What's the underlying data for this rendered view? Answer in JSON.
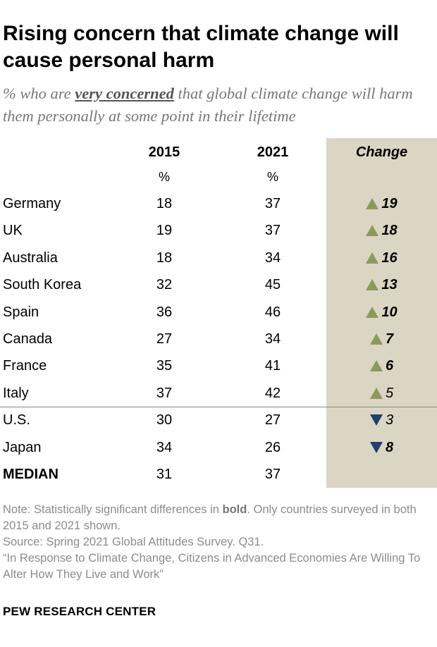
{
  "title": "Rising concern that climate change will cause personal harm",
  "subtitle": {
    "prefix": "% who are ",
    "emphasis": "very concerned",
    "suffix": " that global climate change will harm them personally at some point in their lifetime"
  },
  "columns": {
    "year1": "2015",
    "year2": "2021",
    "change": "Change",
    "unit": "%"
  },
  "colors": {
    "increase_arrow": "#8b9a5a",
    "decrease_arrow": "#1f3f6e",
    "change_background": "#dbd5c3",
    "subtitle": "#777777",
    "note": "#8c8c8c"
  },
  "chart_data": {
    "type": "table",
    "title": "Rising concern that climate change will cause personal harm",
    "columns": [
      "2015",
      "2021",
      "Change"
    ],
    "rows": [
      {
        "country": "Germany",
        "y2015": 18,
        "y2021": 37,
        "change": 19,
        "direction": "up",
        "significant": true
      },
      {
        "country": "UK",
        "y2015": 19,
        "y2021": 37,
        "change": 18,
        "direction": "up",
        "significant": true
      },
      {
        "country": "Australia",
        "y2015": 18,
        "y2021": 34,
        "change": 16,
        "direction": "up",
        "significant": true
      },
      {
        "country": "South Korea",
        "y2015": 32,
        "y2021": 45,
        "change": 13,
        "direction": "up",
        "significant": true
      },
      {
        "country": "Spain",
        "y2015": 36,
        "y2021": 46,
        "change": 10,
        "direction": "up",
        "significant": true
      },
      {
        "country": "Canada",
        "y2015": 27,
        "y2021": 34,
        "change": 7,
        "direction": "up",
        "significant": true
      },
      {
        "country": "France",
        "y2015": 35,
        "y2021": 41,
        "change": 6,
        "direction": "up",
        "significant": true
      },
      {
        "country": "Italy",
        "y2015": 37,
        "y2021": 42,
        "change": 5,
        "direction": "up",
        "significant": false
      },
      {
        "country": "U.S.",
        "y2015": 30,
        "y2021": 27,
        "change": 3,
        "direction": "down",
        "significant": false
      },
      {
        "country": "Japan",
        "y2015": 34,
        "y2021": 26,
        "change": 8,
        "direction": "down",
        "significant": true
      }
    ],
    "median": {
      "label": "MEDIAN",
      "y2015": 31,
      "y2021": 37
    }
  },
  "note": {
    "prefix": "Note: Statistically significant differences in ",
    "bold_word": "bold",
    "suffix": ". Only countries surveyed in both 2015 and 2021 shown.",
    "source": "Source: Spring 2021 Global Attitudes Survey. Q31.",
    "report": "“In Response to Climate Change, Citizens in Advanced Economies Are Willing To Alter How They Live and Work”"
  },
  "brand": "PEW RESEARCH CENTER"
}
